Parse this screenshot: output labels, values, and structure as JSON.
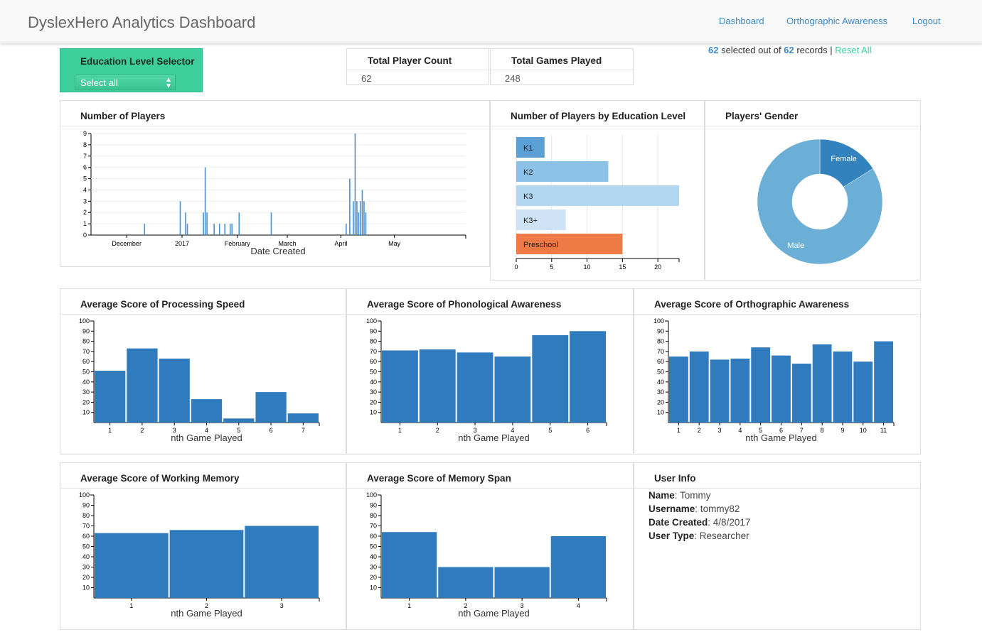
{
  "header": {
    "brand": "DyslexHero Analytics Dashboard",
    "nav": [
      "Dashboard",
      "Orthographic Awareness",
      "Logout"
    ]
  },
  "selector": {
    "title": "Education Level Selector",
    "value": "Select all"
  },
  "stats": {
    "players": {
      "title": "Total Player Count",
      "value": "62"
    },
    "games": {
      "title": "Total Games Played",
      "value": "248"
    }
  },
  "records": {
    "selected": "62",
    "selected_text": " selected out of ",
    "total": "62",
    "total_text": " records | ",
    "reset": "Reset All"
  },
  "colors": {
    "bar": "#2f7bbd",
    "accent": "#3dcf9b",
    "link": "#3d8ac7",
    "orange": "#ee7a45",
    "k1": "#5a9fd6",
    "k2": "#8cc1e8",
    "k3": "#b4d7f1",
    "k3plus": "#cde3f5",
    "male": "#6baed6",
    "female": "#3182bd"
  },
  "panels": {
    "players_time": "Number of Players",
    "education": "Number of Players by Education Level",
    "gender": "Players' Gender",
    "processing": "Average Score of Processing Speed",
    "phonological": "Average Score of Phonological Awareness",
    "orthographic": "Average Score of Orthographic Awareness",
    "working": "Average Score of Working Memory",
    "memoryspan": "Average Score of Memory Span",
    "userinfo": "User Info"
  },
  "user": {
    "name_label": "Name",
    "name": "Tommy",
    "username_label": "Username",
    "username": "tommy82",
    "date_label": "Date Created",
    "date": "4/8/2017",
    "type_label": "User Type",
    "type": "Researcher"
  },
  "chart_data": [
    {
      "id": "players_time",
      "type": "bar",
      "title": "Number of Players",
      "xlabel": "Date Created",
      "ylim": [
        0,
        9
      ],
      "yticks": [
        0,
        1,
        2,
        3,
        4,
        5,
        6,
        7,
        8,
        9
      ],
      "xlim": [
        0,
        210
      ],
      "xticks": [
        {
          "label": "December",
          "x": 20
        },
        {
          "label": "2017",
          "x": 51
        },
        {
          "label": "February",
          "x": 82
        },
        {
          "label": "March",
          "x": 110
        },
        {
          "label": "April",
          "x": 140
        },
        {
          "label": "May",
          "x": 170
        }
      ],
      "bars": [
        [
          30,
          1
        ],
        [
          50,
          3
        ],
        [
          53,
          2
        ],
        [
          54,
          1
        ],
        [
          63,
          2
        ],
        [
          64,
          6
        ],
        [
          65,
          2
        ],
        [
          69,
          1
        ],
        [
          72,
          1
        ],
        [
          75,
          1
        ],
        [
          78,
          1
        ],
        [
          79,
          1
        ],
        [
          83,
          2
        ],
        [
          101,
          2
        ],
        [
          143,
          1
        ],
        [
          145,
          5
        ],
        [
          147,
          3
        ],
        [
          148,
          9
        ],
        [
          149,
          3
        ],
        [
          150,
          2
        ],
        [
          151,
          3
        ],
        [
          152,
          4
        ],
        [
          153,
          3
        ],
        [
          154,
          2
        ]
      ]
    },
    {
      "id": "education",
      "type": "bar",
      "orientation": "horizontal",
      "title": "Number of Players by Education Level",
      "categories": [
        "K1",
        "K2",
        "K3",
        "K3+",
        "Preschool"
      ],
      "values": [
        4,
        13,
        23,
        7,
        15
      ],
      "xlim": [
        0,
        23
      ],
      "xticks": [
        0,
        5,
        10,
        15,
        20
      ]
    },
    {
      "id": "gender",
      "type": "pie",
      "title": "Players' Gender",
      "labels": [
        "Female",
        "Male"
      ],
      "values": [
        10,
        52
      ]
    },
    {
      "id": "processing",
      "type": "bar",
      "title": "Average Score of Processing Speed",
      "xlabel": "nth Game Played",
      "categories": [
        "1",
        "2",
        "3",
        "4",
        "5",
        "6",
        "7"
      ],
      "values": [
        51,
        73,
        63,
        23,
        4,
        30,
        9
      ],
      "ylim": [
        0,
        100
      ],
      "yticks": [
        10,
        20,
        30,
        40,
        50,
        60,
        70,
        80,
        90,
        100
      ]
    },
    {
      "id": "phonological",
      "type": "bar",
      "title": "Average Score of Phonological Awareness",
      "xlabel": "nth Game Played",
      "categories": [
        "1",
        "2",
        "3",
        "4",
        "5",
        "6"
      ],
      "values": [
        71,
        72,
        69,
        65,
        86,
        90
      ],
      "ylim": [
        0,
        100
      ],
      "yticks": [
        10,
        20,
        30,
        40,
        50,
        60,
        70,
        80,
        90,
        100
      ]
    },
    {
      "id": "orthographic",
      "type": "bar",
      "title": "Average Score of Orthographic Awareness",
      "xlabel": "nth Game Played",
      "categories": [
        "1",
        "2",
        "3",
        "4",
        "5",
        "6",
        "7",
        "8",
        "9",
        "10",
        "11"
      ],
      "values": [
        65,
        70,
        62,
        63,
        74,
        66,
        58,
        77,
        70,
        60,
        80
      ],
      "ylim": [
        0,
        100
      ],
      "yticks": [
        10,
        20,
        30,
        40,
        50,
        60,
        70,
        80,
        90,
        100
      ]
    },
    {
      "id": "working",
      "type": "bar",
      "title": "Average Score of Working Memory",
      "xlabel": "nth Game Played",
      "categories": [
        "1",
        "2",
        "3"
      ],
      "values": [
        63,
        66,
        70
      ],
      "ylim": [
        0,
        100
      ],
      "yticks": [
        10,
        20,
        30,
        40,
        50,
        60,
        70,
        80,
        90,
        100
      ]
    },
    {
      "id": "memoryspan",
      "type": "bar",
      "title": "Average Score of Memory Span",
      "xlabel": "nth Game Played",
      "categories": [
        "1",
        "2",
        "3",
        "4"
      ],
      "values": [
        64,
        30,
        30,
        60
      ],
      "ylim": [
        0,
        100
      ],
      "yticks": [
        10,
        20,
        30,
        40,
        50,
        60,
        70,
        80,
        90,
        100
      ]
    }
  ]
}
